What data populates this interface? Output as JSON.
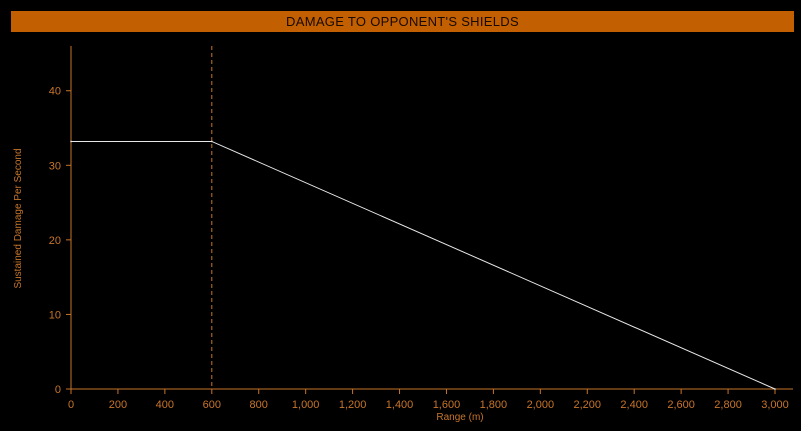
{
  "chart_data": {
    "type": "line",
    "title": "DAMAGE TO OPPONENT'S SHIELDS",
    "xlabel": "Range (m)",
    "ylabel": "Sustained Damage Per Second",
    "xlim": [
      0,
      3000
    ],
    "ylim": [
      0,
      46
    ],
    "x_ticks": [
      0,
      200,
      400,
      600,
      800,
      1000,
      1200,
      1400,
      1600,
      1800,
      2000,
      2200,
      2400,
      2600,
      2800,
      3000
    ],
    "x_tick_labels": [
      "0",
      "200",
      "400",
      "600",
      "800",
      "1,000",
      "1,200",
      "1,400",
      "1,600",
      "1,800",
      "2,000",
      "2,200",
      "2,400",
      "2,600",
      "2,800",
      "3,000"
    ],
    "y_ticks": [
      0,
      10,
      20,
      30,
      40
    ],
    "y_tick_labels": [
      "0",
      "10",
      "20",
      "30",
      "40"
    ],
    "optimal_range_marker": 600,
    "series": [
      {
        "x": [
          0,
          600,
          3000
        ],
        "y": [
          33.2,
          33.2,
          0
        ]
      }
    ],
    "grid": false,
    "colors": {
      "accent": "#c25f00",
      "axis": "#c8752a",
      "line": "#e8e8e8",
      "background": "#000000"
    }
  }
}
